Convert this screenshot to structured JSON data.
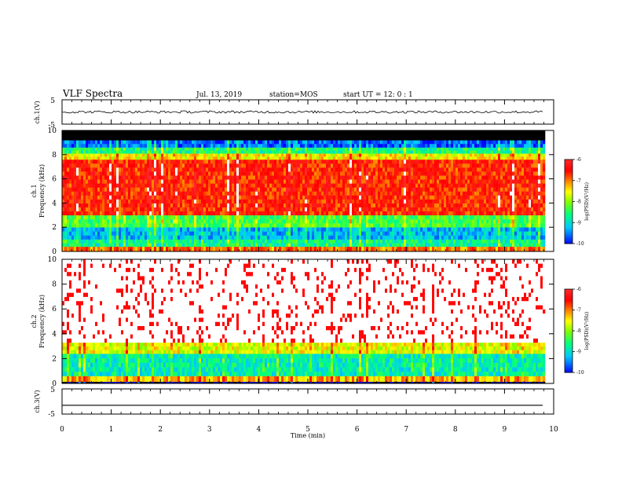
{
  "header": {
    "title": "VLF Spectra",
    "date": "Jul. 13, 2019",
    "station": "station=MOS",
    "start_ut": "start UT = 12: 0 : 1"
  },
  "chart_data": [
    {
      "type": "line",
      "name": "ch1-waveform",
      "ylabel": "ch.1(V)",
      "ylim": [
        -5,
        5
      ],
      "yticks": [
        "5",
        "-5"
      ],
      "xlim": [
        0,
        10
      ],
      "x": [
        0,
        9.8
      ],
      "y": [
        0,
        0
      ],
      "noise_amplitude_v": 0.5
    },
    {
      "type": "heatmap",
      "name": "ch1-spectrogram",
      "ylabel": "ch.1\nFrequency (kHz)",
      "ylim": [
        0,
        10
      ],
      "yticks": [
        "0",
        "2",
        "4",
        "6",
        "8",
        "10"
      ],
      "xlim": [
        0,
        10
      ],
      "data_xmax": 9.8,
      "colorbar": {
        "label": "log(PSD)(V²/Hz)",
        "range": [
          -10,
          -6
        ],
        "ticks": [
          "-6",
          "-7",
          "-8",
          "-9",
          "-10"
        ]
      },
      "bands_khz_logpsd": [
        {
          "f0": 0,
          "f1": 0.4,
          "logpsd": -7.0
        },
        {
          "f0": 0.4,
          "f1": 1.0,
          "logpsd": -8.7
        },
        {
          "f0": 1.0,
          "f1": 2.0,
          "logpsd": -9.2
        },
        {
          "f0": 2.0,
          "f1": 3.0,
          "logpsd": -8.3
        },
        {
          "f0": 3.0,
          "f1": 7.6,
          "logpsd": -6.6
        },
        {
          "f0": 7.6,
          "f1": 8.1,
          "logpsd": -7.5
        },
        {
          "f0": 8.1,
          "f1": 8.6,
          "logpsd": -8.6
        },
        {
          "f0": 8.6,
          "f1": 9.2,
          "logpsd": -9.6
        },
        {
          "f0": 9.2,
          "f1": 10.0,
          "logpsd": -10.5
        }
      ]
    },
    {
      "type": "heatmap",
      "name": "ch2-spectrogram",
      "ylabel": "ch.2\nFrequency (kHz)",
      "ylim": [
        0,
        10
      ],
      "yticks": [
        "0",
        "2",
        "4",
        "6",
        "8",
        "10"
      ],
      "xlim": [
        0,
        10
      ],
      "data_xmax": 9.8,
      "colorbar": {
        "label": "log(PSD)(V²/Hz)",
        "range": [
          -10,
          -6
        ],
        "ticks": [
          "-6",
          "-7",
          "-8",
          "-9",
          "-10"
        ]
      },
      "bands_khz_logpsd": [
        {
          "f0": 0,
          "f1": 0.15,
          "logpsd": -10.5
        },
        {
          "f0": 0.15,
          "f1": 0.6,
          "logpsd": -7.2
        },
        {
          "f0": 0.6,
          "f1": 2.4,
          "logpsd": -8.8
        },
        {
          "f0": 2.4,
          "f1": 3.3,
          "logpsd": -7.6
        },
        {
          "f0": 3.3,
          "f1": 10.0,
          "logpsd": -5.5
        }
      ]
    },
    {
      "type": "line",
      "name": "ch3-waveform",
      "ylabel": "ch.3(V)",
      "ylim": [
        -5,
        5
      ],
      "yticks": [
        "5",
        "-5"
      ],
      "xlim": [
        0,
        10
      ],
      "x": [
        0,
        9.8
      ],
      "y": [
        -1.5,
        -1.5
      ],
      "noise_amplitude_v": 0
    }
  ],
  "xaxis": {
    "label": "Time (min)",
    "ticks": [
      "0",
      "1",
      "2",
      "3",
      "4",
      "5",
      "6",
      "7",
      "8",
      "9",
      "10"
    ]
  },
  "colors": {
    "scale": [
      "#000080",
      "#0000ff",
      "#00c8ff",
      "#00ff80",
      "#80ff00",
      "#ffff00",
      "#ff8000",
      "#ff0000",
      "#ffffff"
    ]
  }
}
